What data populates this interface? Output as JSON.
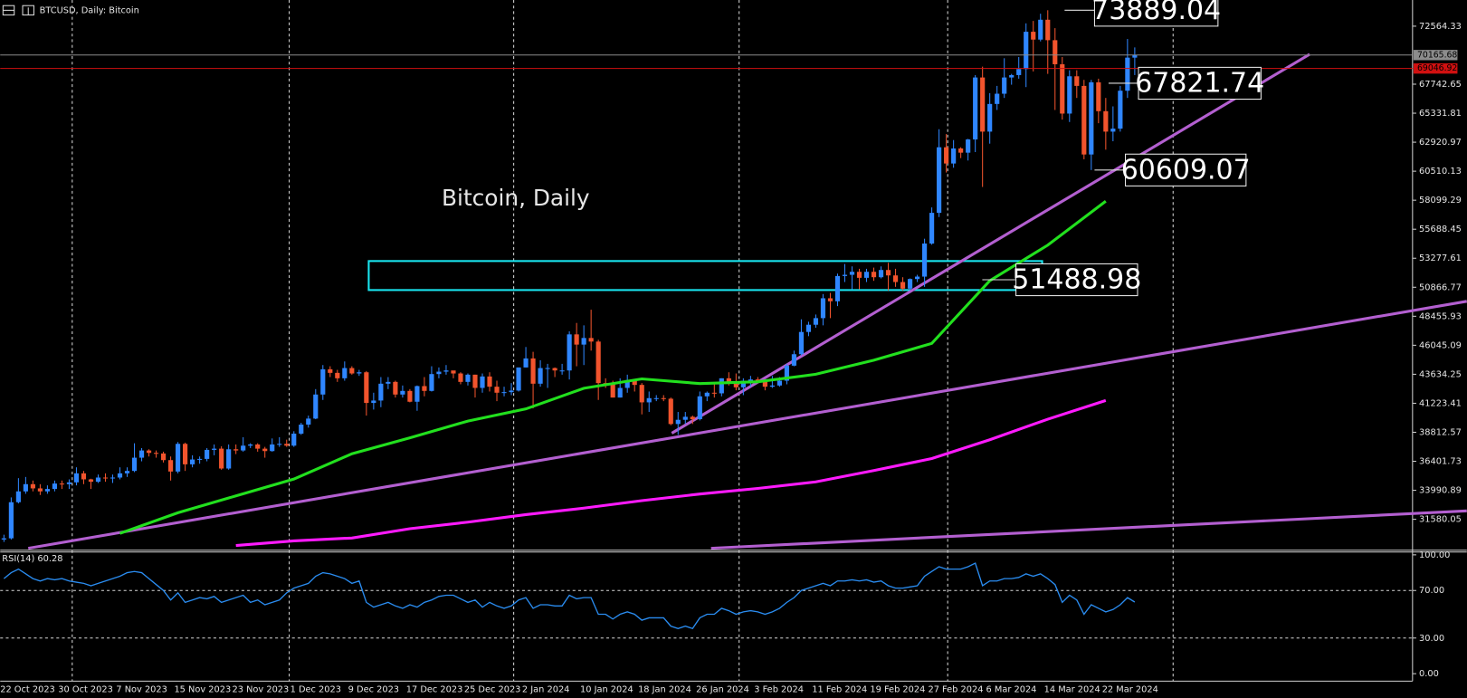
{
  "header": "BTCUSD, Daily: Bitcoin",
  "chart_data": [
    {
      "type": "candlestick",
      "title": "Bitcoin, Daily",
      "categories": [
        "22 Oct 2023",
        null,
        null,
        null,
        null,
        null,
        null,
        null,
        "30 Oct 2023",
        null,
        null,
        null,
        null,
        null,
        null,
        null,
        "7 Nov 2023",
        null,
        null,
        null,
        null,
        null,
        null,
        null,
        "15 Nov 2023",
        null,
        null,
        null,
        null,
        null,
        null,
        null,
        "23 Nov 2023",
        null,
        null,
        null,
        null,
        null,
        null,
        null,
        "1 Dec 2023",
        null,
        null,
        null,
        null,
        null,
        null,
        null,
        "9 Dec 2023",
        null,
        null,
        null,
        null,
        null,
        null,
        null,
        "17 Dec 2023",
        null,
        null,
        null,
        null,
        null,
        null,
        null,
        "25 Dec 2023",
        null,
        null,
        null,
        null,
        null,
        null,
        null,
        "2 Jan 2024",
        null,
        null,
        null,
        null,
        null,
        null,
        null,
        "10 Jan 2024",
        null,
        null,
        null,
        null,
        null,
        null,
        null,
        "18 Jan 2024",
        null,
        null,
        null,
        null,
        null,
        null,
        null,
        "26 Jan 2024",
        null,
        null,
        null,
        null,
        null,
        null,
        null,
        "3 Feb 2024",
        null,
        null,
        null,
        null,
        null,
        null,
        null,
        "11 Feb 2024",
        null,
        null,
        null,
        null,
        null,
        null,
        null,
        "19 Feb 2024",
        null,
        null,
        null,
        null,
        null,
        null,
        null,
        "27 Feb 2024",
        null,
        null,
        null,
        null,
        null,
        null,
        null,
        "6 Mar 2024",
        null,
        null,
        null,
        null,
        null,
        null,
        null,
        "14 Mar 2024",
        null,
        null,
        null,
        null,
        null,
        null,
        null,
        "22 Mar 2024",
        null,
        null,
        null,
        null
      ],
      "open": [
        29900,
        30000,
        33000,
        33900,
        34500,
        34150,
        33900,
        34100,
        34550,
        34500,
        34650,
        35400,
        34900,
        34700,
        35050,
        35000,
        35050,
        35400,
        35600,
        36700,
        37300,
        37100,
        37050,
        36500,
        35550,
        37850,
        36150,
        36550,
        36600,
        37350,
        37450,
        35800,
        37400,
        37300,
        37700,
        37800,
        37450,
        37250,
        37800,
        37850,
        37700,
        38700,
        39450,
        39950,
        41950,
        44050,
        43750,
        43300,
        44150,
        43700,
        43800,
        41250,
        41450,
        42850,
        43000,
        41950,
        42250,
        41350,
        42650,
        42250,
        43650,
        43850,
        43950,
        43700,
        43000,
        43600,
        42500,
        43450,
        42600,
        42100,
        42150,
        42280,
        44200,
        44950,
        42850,
        44150,
        44150,
        43950,
        43950,
        46950,
        46100,
        46650,
        46350,
        42900,
        42850,
        41700,
        42500,
        43150,
        42750,
        41300,
        41650,
        41650,
        41600,
        39500,
        39850,
        40100,
        39900,
        41800,
        42100,
        42050,
        43300,
        42950,
        42550,
        43100,
        43200,
        43000,
        42600,
        42700,
        43100,
        44350,
        45300,
        47150,
        47750,
        48300,
        49950,
        49700,
        51800,
        51900,
        52150,
        51650,
        52150,
        51700,
        52300,
        51850,
        51300,
        50750,
        51550,
        51750,
        54500,
        57050,
        62500,
        61150,
        62400,
        62050,
        63150,
        68300,
        63800,
        66100,
        66950,
        68300,
        68500,
        69000,
        72100,
        71450,
        73100,
        71400,
        69400,
        65300,
        68400,
        67600,
        61900,
        67900,
        65500,
        63800,
        64050,
        67200,
        69950
      ],
      "high": [
        30300,
        33400,
        35000,
        35100,
        34800,
        34500,
        34400,
        34800,
        34800,
        34900,
        35900,
        35600,
        34950,
        35300,
        35400,
        35300,
        35900,
        35900,
        37900,
        37500,
        37400,
        37300,
        37200,
        36800,
        38000,
        37950,
        36900,
        36800,
        37500,
        37800,
        37650,
        37800,
        37800,
        38400,
        37900,
        37900,
        37600,
        38300,
        38400,
        38200,
        38900,
        39600,
        40200,
        42400,
        44400,
        44300,
        44000,
        44700,
        44300,
        44000,
        43900,
        42100,
        43400,
        43400,
        43100,
        42700,
        42400,
        42700,
        43400,
        44300,
        44200,
        44400,
        43900,
        43800,
        43700,
        43600,
        43700,
        43800,
        43100,
        42600,
        42900,
        44200,
        45900,
        45500,
        44800,
        44500,
        44200,
        44500,
        47200,
        47900,
        47700,
        49000,
        46500,
        43300,
        43100,
        43300,
        43600,
        43200,
        42900,
        42200,
        41900,
        41900,
        41700,
        40500,
        40500,
        40200,
        42200,
        42200,
        42800,
        43300,
        43800,
        43700,
        43300,
        43500,
        43400,
        43100,
        43500,
        43400,
        44500,
        45600,
        48200,
        48000,
        48600,
        50300,
        50400,
        52000,
        52800,
        52600,
        52400,
        52400,
        52500,
        52600,
        52900,
        52400,
        51700,
        51600,
        51900,
        54900,
        57500,
        64000,
        63600,
        63100,
        62500,
        63200,
        68500,
        69200,
        67000,
        67600,
        69900,
        68600,
        70000,
        72800,
        73000,
        73600,
        73889,
        72400,
        70000,
        68900,
        68900,
        68100,
        68100,
        68200,
        66600,
        65900,
        67600,
        71500,
        70800
      ],
      "low": [
        29700,
        29900,
        32900,
        33700,
        33900,
        33600,
        33700,
        33900,
        34100,
        34100,
        34400,
        34500,
        34100,
        34600,
        34700,
        34600,
        34900,
        35100,
        35500,
        36400,
        36800,
        36700,
        36300,
        34800,
        35400,
        35600,
        35900,
        36200,
        36400,
        36900,
        35700,
        35700,
        37000,
        37200,
        37500,
        37200,
        36700,
        37200,
        37600,
        37600,
        37600,
        38600,
        39200,
        39900,
        41500,
        43400,
        43000,
        43100,
        43600,
        43500,
        40200,
        40700,
        40900,
        42400,
        41700,
        41700,
        41300,
        40600,
        41800,
        42200,
        43300,
        43600,
        43300,
        42800,
        42700,
        41700,
        42100,
        42200,
        41400,
        41800,
        41900,
        42200,
        44200,
        40800,
        42600,
        42500,
        43400,
        43600,
        43200,
        44300,
        44400,
        45600,
        41500,
        42500,
        41700,
        41700,
        42100,
        42200,
        40300,
        40500,
        41400,
        41400,
        39400,
        38600,
        39500,
        39500,
        39800,
        41400,
        41700,
        41800,
        42700,
        42300,
        41900,
        42600,
        42900,
        42300,
        42500,
        42600,
        42800,
        44300,
        45200,
        46800,
        47500,
        47700,
        48300,
        49300,
        51300,
        50700,
        50700,
        51300,
        51400,
        51600,
        50600,
        50900,
        50600,
        50600,
        51300,
        50900,
        54400,
        56700,
        60400,
        60800,
        61600,
        61400,
        62100,
        59200,
        62800,
        65600,
        66600,
        67700,
        68200,
        67500,
        68800,
        71300,
        68600,
        65600,
        64800,
        64600,
        66600,
        61500,
        60609,
        64500,
        62300,
        63000,
        63800,
        66600,
        68500
      ],
      "close": [
        30000,
        33000,
        33900,
        34500,
        34150,
        33900,
        34100,
        34550,
        34500,
        34650,
        35400,
        34900,
        34700,
        35050,
        35000,
        35050,
        35400,
        35600,
        36700,
        37300,
        37100,
        37050,
        36500,
        35550,
        37850,
        36150,
        36550,
        36600,
        37350,
        37450,
        35800,
        37400,
        37300,
        37700,
        37800,
        37450,
        37250,
        37800,
        37850,
        37700,
        38700,
        39450,
        39950,
        41950,
        44050,
        43750,
        43300,
        44150,
        43700,
        43800,
        41250,
        41450,
        42850,
        43000,
        41950,
        42250,
        41350,
        42650,
        42250,
        43650,
        43850,
        43950,
        43700,
        43000,
        43600,
        42500,
        43450,
        42600,
        42100,
        42150,
        42280,
        44200,
        44950,
        42850,
        44150,
        44150,
        43950,
        43950,
        46950,
        46100,
        46650,
        46350,
        42900,
        42850,
        41700,
        42500,
        43150,
        42750,
        41300,
        41650,
        41650,
        41600,
        39500,
        39850,
        40100,
        39900,
        41800,
        42100,
        42050,
        43300,
        42950,
        42550,
        43100,
        43200,
        43000,
        42600,
        42700,
        43100,
        44350,
        45300,
        47150,
        47750,
        48300,
        49950,
        49700,
        51800,
        51900,
        52150,
        51650,
        52150,
        51700,
        52300,
        51850,
        51300,
        50750,
        51550,
        51750,
        54500,
        57050,
        62500,
        61150,
        62400,
        62050,
        63150,
        68300,
        63800,
        66100,
        66950,
        68300,
        68500,
        69000,
        72100,
        71450,
        73100,
        71400,
        69400,
        65300,
        68400,
        67600,
        61900,
        67900,
        65500,
        63800,
        64050,
        67200,
        69950,
        70166
      ],
      "up_color": "#2f86ff",
      "down_color": "#f2542d",
      "series": [
        {
          "color": "#22e01e",
          "x": [
            "7 Nov 2023",
            "15 Nov 2023",
            "23 Nov 2023",
            "1 Dec 2023",
            "9 Dec 2023",
            "17 Dec 2023",
            "25 Dec 2023",
            "2 Jan 2024",
            "10 Jan 2024",
            "18 Jan 2024",
            "26 Jan 2024",
            "3 Feb 2024",
            "11 Feb 2024",
            "19 Feb 2024",
            "27 Feb 2024",
            "6 Mar 2024",
            "14 Mar 2024",
            "22 Mar 2024"
          ],
          "values": [
            30410,
            32125,
            33525,
            34925,
            37025,
            38350,
            39745,
            40755,
            42470,
            43250,
            42860,
            43010,
            43635,
            44800,
            46200,
            51410,
            54366,
            58020
          ]
        },
        {
          "color": "#ff1aff",
          "x": [
            "23 Nov 2023",
            "1 Dec 2023",
            "9 Dec 2023",
            "17 Dec 2023",
            "25 Dec 2023",
            "2 Jan 2024",
            "10 Jan 2024",
            "18 Jan 2024",
            "26 Jan 2024",
            "3 Feb 2024",
            "11 Feb 2024",
            "19 Feb 2024",
            "27 Feb 2024",
            "6 Mar 2024",
            "14 Mar 2024",
            "22 Mar 2024"
          ],
          "values": [
            29400,
            29790,
            30025,
            30800,
            31345,
            31970,
            32510,
            33130,
            33680,
            34145,
            34690,
            35630,
            36630,
            38190,
            39900,
            41455
          ]
        }
      ],
      "price_lines": [
        {
          "value": 70165.68,
          "color": "#8c8c8c"
        },
        {
          "value": 69046.92,
          "color": "#d01010"
        }
      ],
      "annotations": [
        73889.04,
        67821.74,
        60609.07,
        51488.98
      ],
      "ylim": [
        29170,
        74740
      ],
      "yticks": [
        72564.33,
        67742.65,
        65331.81,
        62920.97,
        60510.13,
        58099.29,
        55688.45,
        53277.61,
        50866.77,
        48455.93,
        46045.09,
        43634.25,
        41223.41,
        38812.57,
        36401.73,
        33990.89,
        31580.05
      ]
    },
    {
      "type": "line",
      "title": "RSI(14) 60.28",
      "color": "#2a8cf0",
      "values": [
        80,
        85,
        88,
        84,
        80,
        78,
        80,
        79,
        80,
        78,
        77,
        76,
        74,
        76,
        78,
        80,
        82,
        85,
        86,
        85,
        80,
        75,
        70,
        62,
        68,
        60,
        62,
        64,
        63,
        65,
        60,
        62,
        64,
        66,
        60,
        62,
        58,
        60,
        62,
        68,
        72,
        74,
        76,
        82,
        85,
        84,
        82,
        80,
        76,
        78,
        60,
        56,
        58,
        60,
        57,
        55,
        58,
        56,
        60,
        62,
        65,
        66,
        66,
        63,
        60,
        62,
        56,
        60,
        57,
        55,
        57,
        62,
        64,
        55,
        58,
        58,
        57,
        57,
        66,
        63,
        64,
        64,
        50,
        50,
        46,
        50,
        52,
        50,
        45,
        47,
        47,
        47,
        40,
        38,
        40,
        38,
        47,
        50,
        50,
        55,
        53,
        50,
        52,
        53,
        52,
        50,
        52,
        55,
        60,
        64,
        70,
        72,
        74,
        76,
        74,
        78,
        78,
        79,
        78,
        79,
        77,
        78,
        74,
        72,
        72,
        73,
        74,
        82,
        86,
        90,
        88,
        88,
        88,
        90,
        93,
        74,
        78,
        78,
        80,
        80,
        81,
        84,
        82,
        84,
        80,
        75,
        60,
        66,
        62,
        50,
        58,
        55,
        52,
        54,
        58,
        64,
        60.28
      ],
      "ylim": [
        0,
        100
      ],
      "grid": true,
      "yticks": [
        {
          "value": 100,
          "label": "100.00"
        },
        {
          "value": 70,
          "label": "70.00"
        },
        {
          "value": 30,
          "label": "30.00"
        },
        {
          "value": 0,
          "label": "0.00"
        }
      ]
    }
  ]
}
